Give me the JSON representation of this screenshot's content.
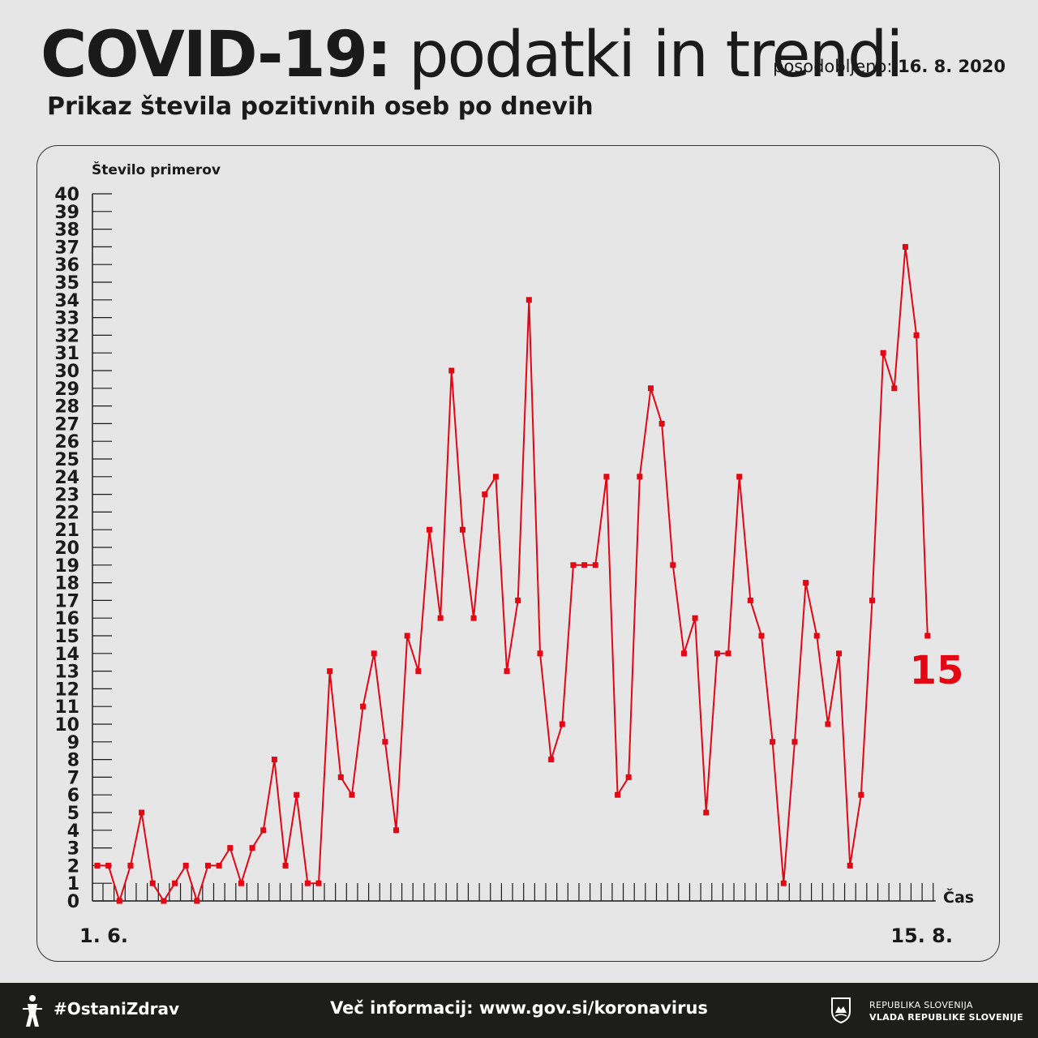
{
  "header": {
    "title_bold": "COVID-19:",
    "title_light": "podatki in trendi",
    "updated_label": "posodobljeno:",
    "updated_date": "16. 8. 2020",
    "subtitle": "Prikaz števila pozitivnih oseb po dnevih"
  },
  "chart_data": {
    "type": "line",
    "title": "Prikaz števila pozitivnih oseb po dnevih",
    "ylabel": "Število primerov",
    "xlabel": "Čas",
    "x_start_label": "1. 6.",
    "x_end_label": "15. 8.",
    "ylim": [
      0,
      40
    ],
    "yticks": [
      0,
      1,
      2,
      3,
      4,
      5,
      6,
      7,
      8,
      9,
      10,
      11,
      12,
      13,
      14,
      15,
      16,
      17,
      18,
      19,
      20,
      21,
      22,
      23,
      24,
      25,
      26,
      27,
      28,
      29,
      30,
      31,
      32,
      33,
      34,
      35,
      36,
      37,
      38,
      39,
      40
    ],
    "series": [
      {
        "color": "#e30613",
        "values": [
          2,
          2,
          0,
          2,
          5,
          1,
          0,
          1,
          2,
          0,
          2,
          2,
          3,
          1,
          3,
          4,
          8,
          2,
          6,
          1,
          1,
          13,
          7,
          6,
          11,
          14,
          9,
          4,
          15,
          13,
          21,
          16,
          30,
          21,
          16,
          23,
          24,
          13,
          17,
          34,
          14,
          8,
          10,
          19,
          19,
          19,
          24,
          6,
          7,
          24,
          29,
          27,
          19,
          14,
          16,
          5,
          14,
          14,
          24,
          17,
          15,
          9,
          1,
          9,
          18,
          15,
          10,
          14,
          2,
          6,
          17,
          31,
          29,
          37,
          32,
          15
        ]
      }
    ],
    "last_value_label": "15",
    "grid": false
  },
  "footer": {
    "hashtag": "#OstaniZdrav",
    "more_info": "Več informacij: www.gov.si/koronavirus",
    "gov_line1": "REPUBLIKA SLOVENIJA",
    "gov_line2": "VLADA REPUBLIKE SLOVENIJE"
  },
  "colors": {
    "accent": "#e30613",
    "background": "#e6e6e6",
    "footer_bg": "#1d1d1b"
  }
}
